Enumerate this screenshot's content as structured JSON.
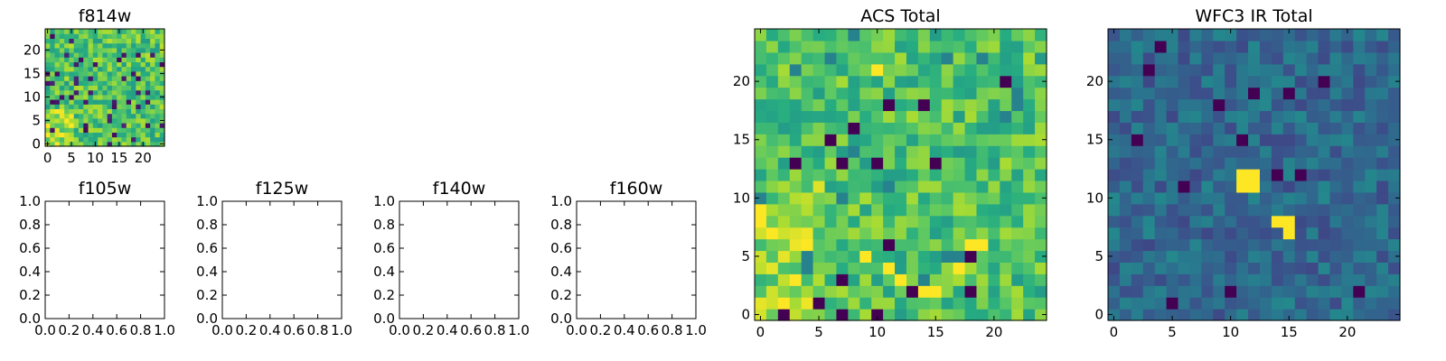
{
  "chart_data": [
    {
      "id": "f814w",
      "type": "heatmap",
      "title": "f814w",
      "colormap": "viridis",
      "size": 25,
      "seed": 814,
      "vmin": 0,
      "vmax": 1,
      "xticks": [
        "0",
        "5",
        "10",
        "15",
        "20"
      ],
      "xtick_values": [
        0,
        5,
        10,
        15,
        20
      ],
      "yticks": [
        "0",
        "5",
        "10",
        "15",
        "20"
      ],
      "ytick_values": [
        0,
        5,
        10,
        15,
        20
      ],
      "xlim": [
        -0.5,
        24.5
      ],
      "ylim": [
        -0.5,
        24.5
      ]
    },
    {
      "id": "f105w",
      "type": "empty",
      "title": "f105w",
      "xticks": [
        "0.0",
        "0.2",
        "0.4",
        "0.6",
        "0.8",
        "1.0"
      ],
      "xtick_values": [
        0.0,
        0.2,
        0.4,
        0.6,
        0.8,
        1.0
      ],
      "yticks": [
        "0.0",
        "0.2",
        "0.4",
        "0.6",
        "0.8",
        "1.0"
      ],
      "ytick_values": [
        0.0,
        0.2,
        0.4,
        0.6,
        0.8,
        1.0
      ],
      "xlim": [
        0,
        1
      ],
      "ylim": [
        0,
        1
      ]
    },
    {
      "id": "f125w",
      "type": "empty",
      "title": "f125w",
      "xticks": [
        "0.0",
        "0.2",
        "0.4",
        "0.6",
        "0.8",
        "1.0"
      ],
      "xtick_values": [
        0.0,
        0.2,
        0.4,
        0.6,
        0.8,
        1.0
      ],
      "yticks": [
        "0.0",
        "0.2",
        "0.4",
        "0.6",
        "0.8",
        "1.0"
      ],
      "ytick_values": [
        0.0,
        0.2,
        0.4,
        0.6,
        0.8,
        1.0
      ],
      "xlim": [
        0,
        1
      ],
      "ylim": [
        0,
        1
      ]
    },
    {
      "id": "f140w",
      "type": "empty",
      "title": "f140w",
      "xticks": [
        "0.0",
        "0.2",
        "0.4",
        "0.6",
        "0.8",
        "1.0"
      ],
      "xtick_values": [
        0.0,
        0.2,
        0.4,
        0.6,
        0.8,
        1.0
      ],
      "yticks": [
        "0.0",
        "0.2",
        "0.4",
        "0.6",
        "0.8",
        "1.0"
      ],
      "ytick_values": [
        0.0,
        0.2,
        0.4,
        0.6,
        0.8,
        1.0
      ],
      "xlim": [
        0,
        1
      ],
      "ylim": [
        0,
        1
      ]
    },
    {
      "id": "f160w",
      "type": "empty",
      "title": "f160w",
      "xticks": [
        "0.0",
        "0.2",
        "0.4",
        "0.6",
        "0.8",
        "1.0"
      ],
      "xtick_values": [
        0.0,
        0.2,
        0.4,
        0.6,
        0.8,
        1.0
      ],
      "yticks": [
        "0.0",
        "0.2",
        "0.4",
        "0.6",
        "0.8",
        "1.0"
      ],
      "ytick_values": [
        0.0,
        0.2,
        0.4,
        0.6,
        0.8,
        1.0
      ],
      "xlim": [
        0,
        1
      ],
      "ylim": [
        0,
        1
      ]
    },
    {
      "id": "acs_total",
      "type": "heatmap",
      "title": "ACS Total",
      "colormap": "viridis",
      "size": 25,
      "seed": 4242,
      "vmin": 0,
      "vmax": 1,
      "xticks": [
        "0",
        "5",
        "10",
        "15",
        "20"
      ],
      "xtick_values": [
        0,
        5,
        10,
        15,
        20
      ],
      "yticks": [
        "0",
        "5",
        "10",
        "15",
        "20"
      ],
      "ytick_values": [
        0,
        5,
        10,
        15,
        20
      ],
      "xlim": [
        -0.5,
        24.5
      ],
      "ylim": [
        -0.5,
        24.5
      ],
      "dark_cells": [
        [
          2,
          0
        ],
        [
          7,
          0
        ],
        [
          10,
          0
        ],
        [
          5,
          1
        ],
        [
          18,
          2
        ],
        [
          7,
          3
        ],
        [
          11,
          6
        ],
        [
          7,
          13
        ],
        [
          10,
          13
        ],
        [
          15,
          13
        ],
        [
          8,
          16
        ],
        [
          11,
          18
        ],
        [
          14,
          18
        ],
        [
          18,
          5
        ],
        [
          6,
          15
        ],
        [
          3,
          13
        ],
        [
          13,
          2
        ],
        [
          21,
          20
        ]
      ],
      "bright_cells": [
        [
          0,
          8
        ],
        [
          0,
          9
        ],
        [
          1,
          7
        ],
        [
          12,
          3
        ],
        [
          11,
          4
        ],
        [
          17,
          4
        ],
        [
          18,
          6
        ],
        [
          19,
          6
        ],
        [
          14,
          2
        ],
        [
          15,
          2
        ],
        [
          4,
          6
        ],
        [
          9,
          5
        ],
        [
          10,
          21
        ],
        [
          3,
          3
        ],
        [
          2,
          1
        ]
      ]
    },
    {
      "id": "wfc3_ir_total",
      "type": "heatmap",
      "title": "WFC3 IR Total",
      "colormap": "viridis",
      "size": 25,
      "seed": 1313,
      "vmin": 0,
      "vmax": 1,
      "xticks": [
        "0",
        "5",
        "10",
        "15",
        "20"
      ],
      "xtick_values": [
        0,
        5,
        10,
        15,
        20
      ],
      "yticks": [
        "0",
        "5",
        "10",
        "15",
        "20"
      ],
      "ytick_values": [
        0,
        5,
        10,
        15,
        20
      ],
      "xlim": [
        -0.5,
        24.5
      ],
      "ylim": [
        -0.5,
        24.5
      ],
      "dark_cells": [
        [
          5,
          1
        ],
        [
          10,
          2
        ],
        [
          21,
          2
        ],
        [
          2,
          15
        ],
        [
          11,
          15
        ],
        [
          4,
          23
        ],
        [
          9,
          18
        ],
        [
          12,
          19
        ],
        [
          15,
          19
        ],
        [
          18,
          20
        ],
        [
          6,
          11
        ],
        [
          14,
          12
        ],
        [
          16,
          12
        ],
        [
          3,
          21
        ]
      ],
      "bright_cells": [
        [
          11,
          11
        ],
        [
          12,
          11
        ],
        [
          11,
          12
        ],
        [
          12,
          12
        ],
        [
          14,
          8
        ],
        [
          15,
          8
        ],
        [
          15,
          7
        ]
      ]
    }
  ]
}
